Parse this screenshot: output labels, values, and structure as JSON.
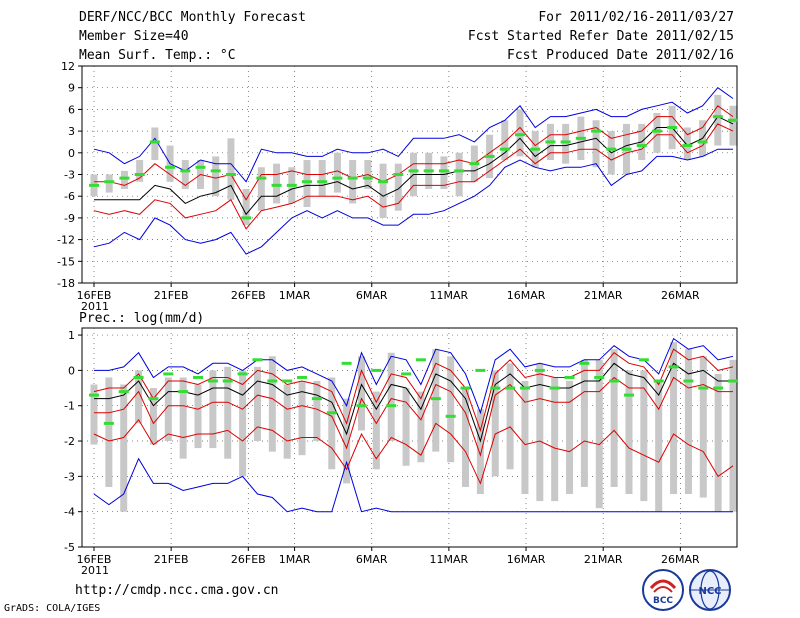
{
  "header": {
    "title": "DERF/NCC/BCC Monthly Forecast",
    "member_size": "Member Size=40",
    "variable": "Mean Surf. Temp.: °C",
    "period": "For 2011/02/16-2011/03/27",
    "started": "Fcst Started Refer Date 2011/02/15",
    "produced": "Fcst Produced Date 2011/02/16"
  },
  "footer": {
    "url": "http://cmdp.ncc.cma.gov.cn",
    "grads": "GrADS: COLA/IGES",
    "logo_left_text": "BCC",
    "logo_right_text": "NCC"
  },
  "colors": {
    "blue": "#0000dd",
    "red": "#dd0000",
    "black": "#000000",
    "green": "#33dd33",
    "box": "#c8c8c8"
  },
  "chart_data": [
    {
      "type": "line",
      "title": "Mean Surf. Temp.: °C",
      "ylabel": "°C",
      "ylim": [
        -18,
        12
      ],
      "yticks": [
        12,
        9,
        6,
        3,
        0,
        -3,
        -6,
        -9,
        -12,
        -15,
        -18
      ],
      "x_days": 40,
      "x_ticks": [
        {
          "day": 0,
          "label": "16FEB"
        },
        {
          "day": 5,
          "label": "21FEB"
        },
        {
          "day": 10,
          "label": "26FEB"
        },
        {
          "day": 13,
          "label": "1MAR"
        },
        {
          "day": 18,
          "label": "6MAR"
        },
        {
          "day": 23,
          "label": "11MAR"
        },
        {
          "day": 28,
          "label": "16MAR"
        },
        {
          "day": 33,
          "label": "21MAR"
        },
        {
          "day": 38,
          "label": "26MAR"
        }
      ],
      "x_sublabel": "2011",
      "series": [
        {
          "name": "max",
          "color": "blue",
          "values": [
            0.5,
            0,
            -1.5,
            -0.5,
            2,
            -1.5,
            -2.5,
            -1,
            -1.5,
            -1.5,
            -4,
            0.5,
            0,
            0,
            -0.5,
            -0.5,
            0.5,
            0,
            0,
            0.5,
            -0.5,
            2,
            2,
            2,
            2.5,
            1.5,
            3.5,
            4.5,
            6.5,
            3.5,
            5,
            5,
            5.5,
            6,
            5,
            5,
            6,
            6.5,
            7,
            5.5,
            6.5,
            9,
            7.5
          ]
        },
        {
          "name": "upper",
          "color": "red",
          "values": [
            -4,
            -4,
            -4.5,
            -3.5,
            -1.5,
            -3,
            -4.5,
            -3,
            -3.5,
            -3,
            -6.5,
            -3,
            -3,
            -2.5,
            -3,
            -3,
            -2.5,
            -3.5,
            -3,
            -4,
            -3,
            -1.5,
            -1.5,
            -1.5,
            -1,
            -1.5,
            0,
            1.5,
            3.5,
            1,
            2.5,
            2.5,
            3,
            3.5,
            2,
            2.5,
            3,
            5,
            5,
            2.5,
            3.5,
            6.5,
            5
          ]
        },
        {
          "name": "mean",
          "color": "black",
          "values": [
            -6.5,
            -6.5,
            -6.5,
            -6.5,
            -4.5,
            -5,
            -7,
            -6,
            -5.5,
            -4.5,
            -8.5,
            -6,
            -6,
            -5,
            -4.5,
            -4.5,
            -4,
            -5,
            -4.5,
            -6,
            -5,
            -3,
            -3,
            -3,
            -2.5,
            -2.5,
            -1.5,
            0,
            2,
            -0.5,
            1,
            1,
            1.5,
            2,
            0,
            1,
            1.5,
            3.5,
            3.5,
            1,
            2,
            5,
            4
          ]
        },
        {
          "name": "lower",
          "color": "red",
          "values": [
            -8,
            -8.5,
            -8,
            -8.5,
            -6.5,
            -7,
            -9,
            -8.5,
            -8,
            -6.5,
            -10.5,
            -8,
            -7.5,
            -7,
            -6,
            -6,
            -6,
            -6.5,
            -6,
            -7.5,
            -7,
            -4.5,
            -4.5,
            -4.5,
            -4,
            -4,
            -2.5,
            -1,
            0.5,
            -1.5,
            0,
            0,
            0.5,
            0.5,
            -1,
            0,
            0.5,
            2.5,
            2.5,
            0,
            1,
            4,
            3
          ]
        },
        {
          "name": "min",
          "color": "blue",
          "values": [
            -13,
            -12.5,
            -11,
            -12,
            -9,
            -10,
            -12,
            -12.5,
            -12,
            -11,
            -14,
            -13,
            -11,
            -9,
            -8,
            -9,
            -8,
            -9,
            -9,
            -10,
            -10,
            -8.5,
            -8.5,
            -8,
            -7,
            -6,
            -4.5,
            -2,
            -1,
            -2,
            -2.5,
            -2,
            -2,
            -1.5,
            -4.5,
            -3,
            -2.5,
            -0.5,
            -0.5,
            -1,
            -0.5,
            0.5,
            0.5
          ]
        }
      ],
      "boxes": [
        [
          -6,
          -3
        ],
        [
          -5.5,
          -3
        ],
        [
          -5,
          -2.5
        ],
        [
          -4,
          -1
        ],
        [
          -1,
          3.5
        ],
        [
          -4,
          1
        ],
        [
          -5,
          -1
        ],
        [
          -5,
          -1
        ],
        [
          -6,
          -0.5
        ],
        [
          -6.5,
          2
        ],
        [
          -10,
          -5
        ],
        [
          -8,
          -2
        ],
        [
          -7,
          -1.5
        ],
        [
          -7,
          -2
        ],
        [
          -7.5,
          -1
        ],
        [
          -6,
          -1
        ],
        [
          -5.5,
          0
        ],
        [
          -7,
          -1
        ],
        [
          -5,
          -1
        ],
        [
          -9,
          -1.5
        ],
        [
          -8,
          -1.5
        ],
        [
          -6,
          0
        ],
        [
          -5,
          0
        ],
        [
          -5,
          -0.5
        ],
        [
          -6,
          0
        ],
        [
          -4,
          1
        ],
        [
          -3.5,
          2.5
        ],
        [
          -1,
          4.5
        ],
        [
          -0.5,
          6
        ],
        [
          -2,
          3
        ],
        [
          -1,
          4
        ],
        [
          -1.5,
          4
        ],
        [
          -1,
          5
        ],
        [
          -2,
          4.5
        ],
        [
          -3,
          3
        ],
        [
          -3,
          4
        ],
        [
          -1,
          4
        ],
        [
          0,
          5.5
        ],
        [
          0.5,
          6.5
        ],
        [
          -1,
          3.5
        ],
        [
          -0.5,
          4.5
        ],
        [
          1,
          8
        ],
        [
          1,
          6.5
        ]
      ],
      "dashes": [
        -4.5,
        -4,
        -3.5,
        -3,
        1.5,
        -2,
        -2.5,
        -2,
        -2.5,
        -3,
        -9,
        -3.5,
        -4.5,
        -4.5,
        -4,
        -4,
        -3.5,
        -3.5,
        -3.5,
        -4,
        -3,
        -2.5,
        -2.5,
        -2.5,
        -2.5,
        -1.5,
        -0.5,
        0.5,
        2.5,
        0.5,
        1.5,
        1.5,
        2,
        3,
        0.5,
        0.5,
        1,
        3,
        3.5,
        1,
        1.5,
        5,
        4.5
      ]
    },
    {
      "type": "line",
      "title": "Prec.: log(mm/d)",
      "ylabel": "log(mm/d)",
      "ylim": [
        -5,
        1.2
      ],
      "yticks": [
        1,
        0,
        -1,
        -2,
        -3,
        -4,
        -5
      ],
      "x_days": 40,
      "x_ticks": [
        {
          "day": 0,
          "label": "16FEB"
        },
        {
          "day": 5,
          "label": "21FEB"
        },
        {
          "day": 10,
          "label": "26FEB"
        },
        {
          "day": 13,
          "label": "1MAR"
        },
        {
          "day": 18,
          "label": "6MAR"
        },
        {
          "day": 23,
          "label": "11MAR"
        },
        {
          "day": 28,
          "label": "16MAR"
        },
        {
          "day": 33,
          "label": "21MAR"
        },
        {
          "day": 38,
          "label": "26MAR"
        }
      ],
      "x_sublabel": "2011",
      "series": [
        {
          "name": "max",
          "color": "blue",
          "values": [
            0,
            0,
            0.1,
            0.5,
            -0.2,
            0.1,
            0.1,
            -0.1,
            0.2,
            0.2,
            0,
            0.3,
            0.3,
            0,
            0.1,
            -0.1,
            -0.3,
            -1,
            0.5,
            -0.4,
            0.4,
            0.3,
            -0.4,
            0.6,
            0.5,
            -0.1,
            -1.2,
            0.3,
            0.6,
            0.1,
            0.2,
            0.1,
            0.1,
            0.3,
            0.3,
            0.7,
            0.4,
            0.3,
            -0.1,
            0.9,
            0.6,
            0.7,
            0.3,
            0.4
          ]
        },
        {
          "name": "upper",
          "color": "red",
          "values": [
            -0.6,
            -0.5,
            -0.5,
            -0.1,
            -0.8,
            -0.3,
            -0.3,
            -0.4,
            -0.2,
            -0.2,
            -0.4,
            0,
            -0.1,
            -0.4,
            -0.3,
            -0.4,
            -0.6,
            -1.5,
            0,
            -0.9,
            -0.1,
            -0.2,
            -0.8,
            0.2,
            0,
            -0.5,
            -1.7,
            -0.1,
            0.3,
            -0.2,
            -0.1,
            -0.2,
            -0.2,
            0,
            0,
            0.5,
            0.2,
            0.1,
            -0.4,
            0.6,
            0.3,
            0.4,
            0,
            0.1
          ]
        },
        {
          "name": "mean",
          "color": "black",
          "values": [
            -0.8,
            -0.8,
            -0.7,
            -0.3,
            -1,
            -0.6,
            -0.6,
            -0.7,
            -0.5,
            -0.5,
            -0.7,
            -0.3,
            -0.4,
            -0.7,
            -0.6,
            -0.7,
            -0.9,
            -1.8,
            -0.4,
            -1.1,
            -0.4,
            -0.5,
            -1.1,
            -0.1,
            -0.3,
            -0.8,
            -2,
            -0.4,
            -0.1,
            -0.5,
            -0.4,
            -0.5,
            -0.5,
            -0.3,
            -0.3,
            0.2,
            -0.1,
            -0.2,
            -0.7,
            0.2,
            -0.1,
            0,
            -0.3,
            -0.3
          ]
        },
        {
          "name": "lower",
          "color": "red",
          "values": [
            -1.2,
            -1.2,
            -1.1,
            -0.6,
            -1.5,
            -1,
            -1,
            -1.1,
            -0.9,
            -0.9,
            -1.1,
            -0.7,
            -0.8,
            -1.1,
            -1,
            -1.1,
            -1.3,
            -2.2,
            -0.8,
            -1.5,
            -0.8,
            -0.9,
            -1.4,
            -0.4,
            -0.6,
            -1.2,
            -2.4,
            -0.7,
            -0.4,
            -0.9,
            -0.8,
            -0.9,
            -0.9,
            -0.6,
            -0.6,
            -0.2,
            -0.5,
            -0.5,
            -1.1,
            -0.2,
            -0.5,
            -0.4,
            -0.6,
            -0.6
          ]
        },
        {
          "name": "lower2",
          "color": "red",
          "values": [
            -1.8,
            -2,
            -1.9,
            -1.4,
            -2.1,
            -1.8,
            -1.9,
            -1.8,
            -1.8,
            -1.7,
            -2,
            -1.6,
            -1.7,
            -2,
            -1.9,
            -1.9,
            -2.2,
            -2.8,
            -1.8,
            -2.5,
            -1.9,
            -2.1,
            -2.4,
            -1.5,
            -1.8,
            -2.3,
            -3.2,
            -1.8,
            -1.6,
            -2.1,
            -2,
            -2.2,
            -2.3,
            -2,
            -2.1,
            -1.7,
            -2.2,
            -2.4,
            -2.6,
            -1.8,
            -2.1,
            -2.3,
            -3,
            -2.7
          ]
        },
        {
          "name": "min",
          "color": "blue",
          "values": [
            -3.5,
            -3.8,
            -3.5,
            -2.5,
            -3.2,
            -3.2,
            -3.4,
            -3.3,
            -3.2,
            -3.2,
            -3,
            -3.5,
            -3.6,
            -4,
            -3.9,
            -4,
            -4,
            -2.6,
            -4,
            -3.9,
            -4,
            -4,
            -4,
            -4,
            -4,
            -4,
            -4,
            -4,
            -4,
            -4,
            -4,
            -4,
            -4,
            -4,
            -4,
            -4,
            -4,
            -4,
            -4,
            -4,
            -4,
            -4,
            -4,
            -4
          ]
        }
      ],
      "boxes": [
        [
          -2.1,
          -0.4
        ],
        [
          -3.3,
          -0.2
        ],
        [
          -4,
          -0.4
        ],
        [
          -1.5,
          0
        ],
        [
          -2.1,
          -0.5
        ],
        [
          -2,
          -0.2
        ],
        [
          -2.5,
          -0.2
        ],
        [
          -2.2,
          -0.4
        ],
        [
          -2.2,
          0
        ],
        [
          -2.5,
          0.1
        ],
        [
          -3,
          0
        ],
        [
          -2,
          0.1
        ],
        [
          -2.3,
          0.4
        ],
        [
          -2.5,
          -0.4
        ],
        [
          -2.4,
          -0.3
        ],
        [
          -2,
          -0.3
        ],
        [
          -2.8,
          -0.2
        ],
        [
          -3.2,
          -0.8
        ],
        [
          -1.7,
          0.4
        ],
        [
          -2.8,
          -0.6
        ],
        [
          -2,
          0.5
        ],
        [
          -2.7,
          -0.5
        ],
        [
          -2.6,
          -0.6
        ],
        [
          -2.3,
          0.6
        ],
        [
          -2.6,
          0.4
        ],
        [
          -3.3,
          -0.5
        ],
        [
          -3.5,
          -1.1
        ],
        [
          -3,
          0
        ],
        [
          -2.8,
          0.2
        ],
        [
          -3.5,
          -0.3
        ],
        [
          -3.7,
          0.2
        ],
        [
          -3.7,
          -0.2
        ],
        [
          -3.5,
          -0.3
        ],
        [
          -3.3,
          0.3
        ],
        [
          -3.9,
          0.3
        ],
        [
          -3.3,
          0.6
        ],
        [
          -3.5,
          0
        ],
        [
          -3.7,
          0
        ],
        [
          -4,
          -0.3
        ],
        [
          -3.5,
          0.8
        ],
        [
          -3.5,
          0.6
        ],
        [
          -3.6,
          0.4
        ],
        [
          -4,
          -0.1
        ],
        [
          -4,
          0.3
        ]
      ],
      "dashes": [
        -0.7,
        -1.5,
        -0.6,
        -0.2,
        -0.8,
        -0.1,
        -0.6,
        -0.2,
        -0.3,
        -0.3,
        -0.1,
        0.3,
        -0.3,
        -0.3,
        -0.2,
        -0.8,
        -1.2,
        0.2,
        -1,
        0,
        -1,
        -0.1,
        0.3,
        -0.8,
        -1.3,
        -0.5,
        0,
        -0.5,
        -0.5,
        -0.5,
        0,
        -0.5,
        -0.2,
        0.2,
        -0.2,
        -0.3,
        -0.7,
        0.3,
        -0.3,
        0.1,
        -0.3,
        -0.5,
        -0.5,
        -0.3
      ]
    }
  ]
}
